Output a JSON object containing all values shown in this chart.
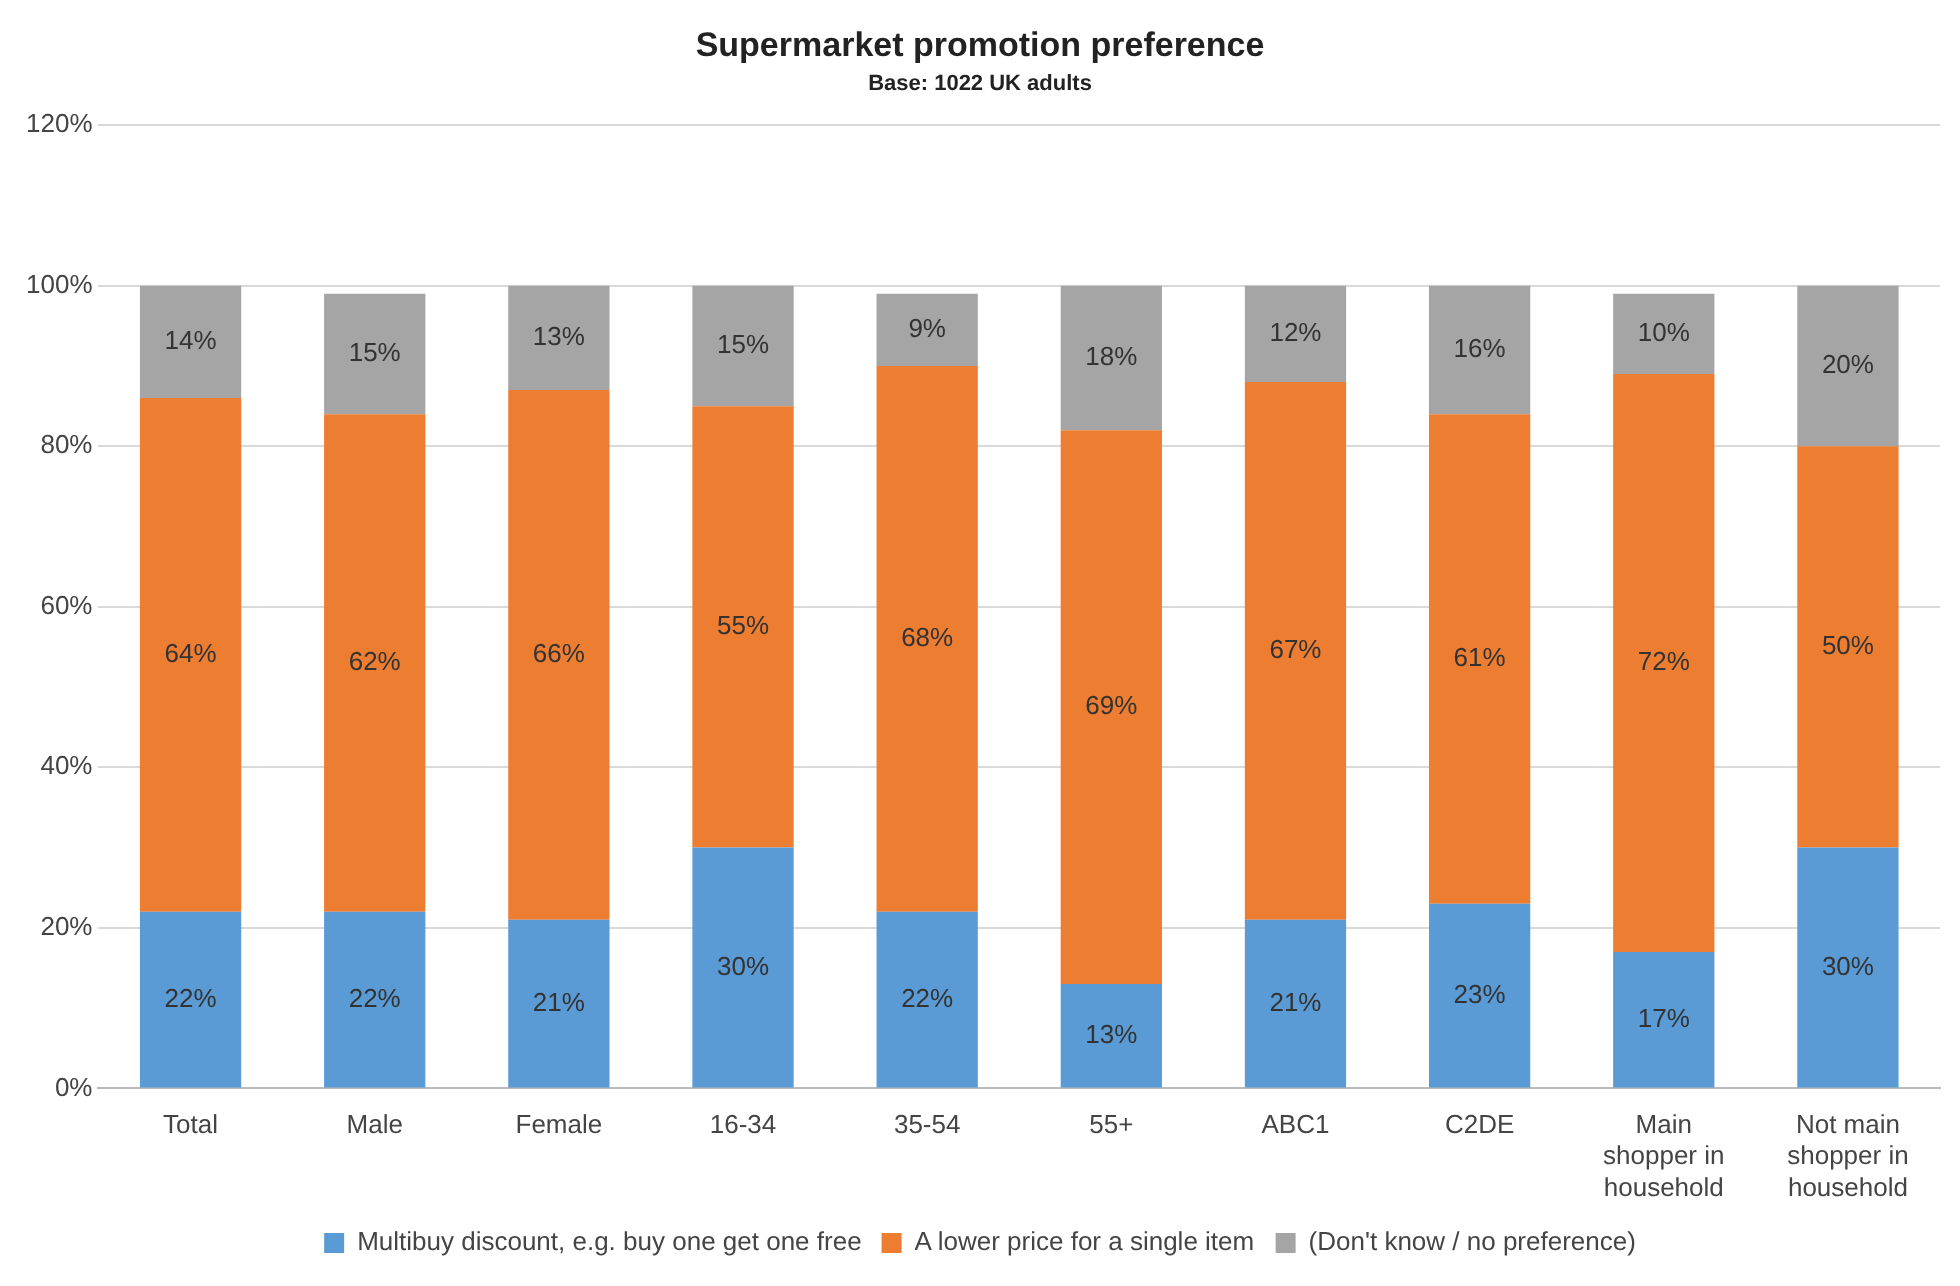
{
  "chart_data": {
    "type": "bar",
    "title": "Supermarket promotion preference",
    "subtitle": "Base: 1022 UK adults",
    "stacked": true,
    "categories": [
      "Total",
      "Male",
      "Female",
      "16-34",
      "35-54",
      "55+",
      "ABC1",
      "C2DE",
      "Main shopper in household",
      "Not main shopper in household"
    ],
    "series": [
      {
        "name": "Multibuy discount, e.g. buy one get one free",
        "color": "#5b9bd5",
        "values": [
          22,
          22,
          21,
          30,
          22,
          13,
          21,
          23,
          17,
          30
        ],
        "value_labels": [
          "22%",
          "22%",
          "21%",
          "30%",
          "22%",
          "13%",
          "21%",
          "23%",
          "17%",
          "30%"
        ]
      },
      {
        "name": "A lower price for a single item",
        "color": "#ed7d31",
        "values": [
          64,
          62,
          66,
          55,
          68,
          69,
          67,
          61,
          72,
          50
        ],
        "value_labels": [
          "64%",
          "62%",
          "66%",
          "55%",
          "68%",
          "69%",
          "67%",
          "61%",
          "72%",
          "50%"
        ]
      },
      {
        "name": "(Don't know / no preference)",
        "color": "#a5a5a5",
        "values": [
          14,
          15,
          13,
          15,
          9,
          18,
          12,
          16,
          10,
          20
        ],
        "value_labels": [
          "14%",
          "15%",
          "13%",
          "15%",
          "9%",
          "18%",
          "12%",
          "16%",
          "10%",
          "20%"
        ]
      }
    ],
    "ylim": [
      0,
      120
    ],
    "yticks": [
      {
        "value": 0,
        "label": "0%"
      },
      {
        "value": 20,
        "label": "20%"
      },
      {
        "value": 40,
        "label": "40%"
      },
      {
        "value": 60,
        "label": "60%"
      },
      {
        "value": 80,
        "label": "80%"
      },
      {
        "value": 100,
        "label": "100%"
      },
      {
        "value": 120,
        "label": "120%"
      }
    ],
    "grid": "y",
    "legend": "bottom"
  }
}
